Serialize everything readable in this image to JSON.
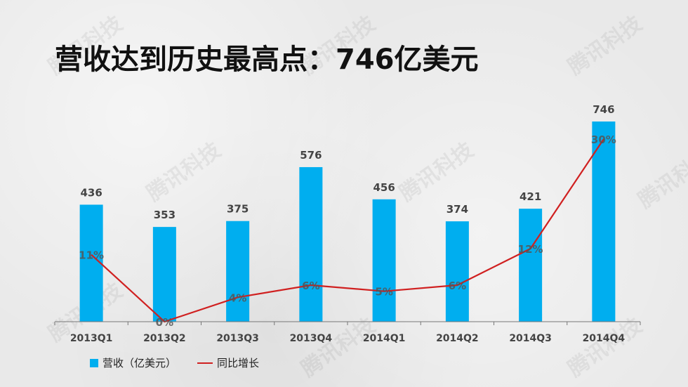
{
  "page": {
    "title": "营收达到历史最高点：746亿美元",
    "watermark_text": "腾讯科技"
  },
  "colors": {
    "bar": "#00aeef",
    "line": "#d02020",
    "axis": "#777777",
    "bar_label": "#444444",
    "line_label": "#555555"
  },
  "legend": {
    "bar_label": "营收（亿美元）",
    "line_label": "同比增长"
  },
  "chart_data": {
    "type": "bar",
    "title": "",
    "categories": [
      "2013Q1",
      "2013Q2",
      "2013Q3",
      "2013Q4",
      "2014Q1",
      "2014Q2",
      "2014Q3",
      "2014Q4"
    ],
    "series": [
      {
        "name": "营收（亿美元）",
        "type": "bar",
        "values": [
          436,
          353,
          375,
          576,
          456,
          374,
          421,
          746
        ],
        "labels": [
          "436",
          "353",
          "375",
          "576",
          "456",
          "374",
          "421",
          "746"
        ]
      },
      {
        "name": "同比增长",
        "type": "line",
        "values": [
          11,
          0,
          4,
          6,
          5,
          6,
          12,
          30
        ],
        "labels": [
          "11%",
          "0%",
          "4%",
          "6%",
          "5%",
          "6%",
          "12%",
          "30%"
        ]
      }
    ],
    "ylim_bar": [
      0,
      800
    ],
    "ylim_line": [
      0,
      35
    ],
    "xlabel": "",
    "ylabel": "",
    "grid": false,
    "legend_position": "bottom-left"
  }
}
